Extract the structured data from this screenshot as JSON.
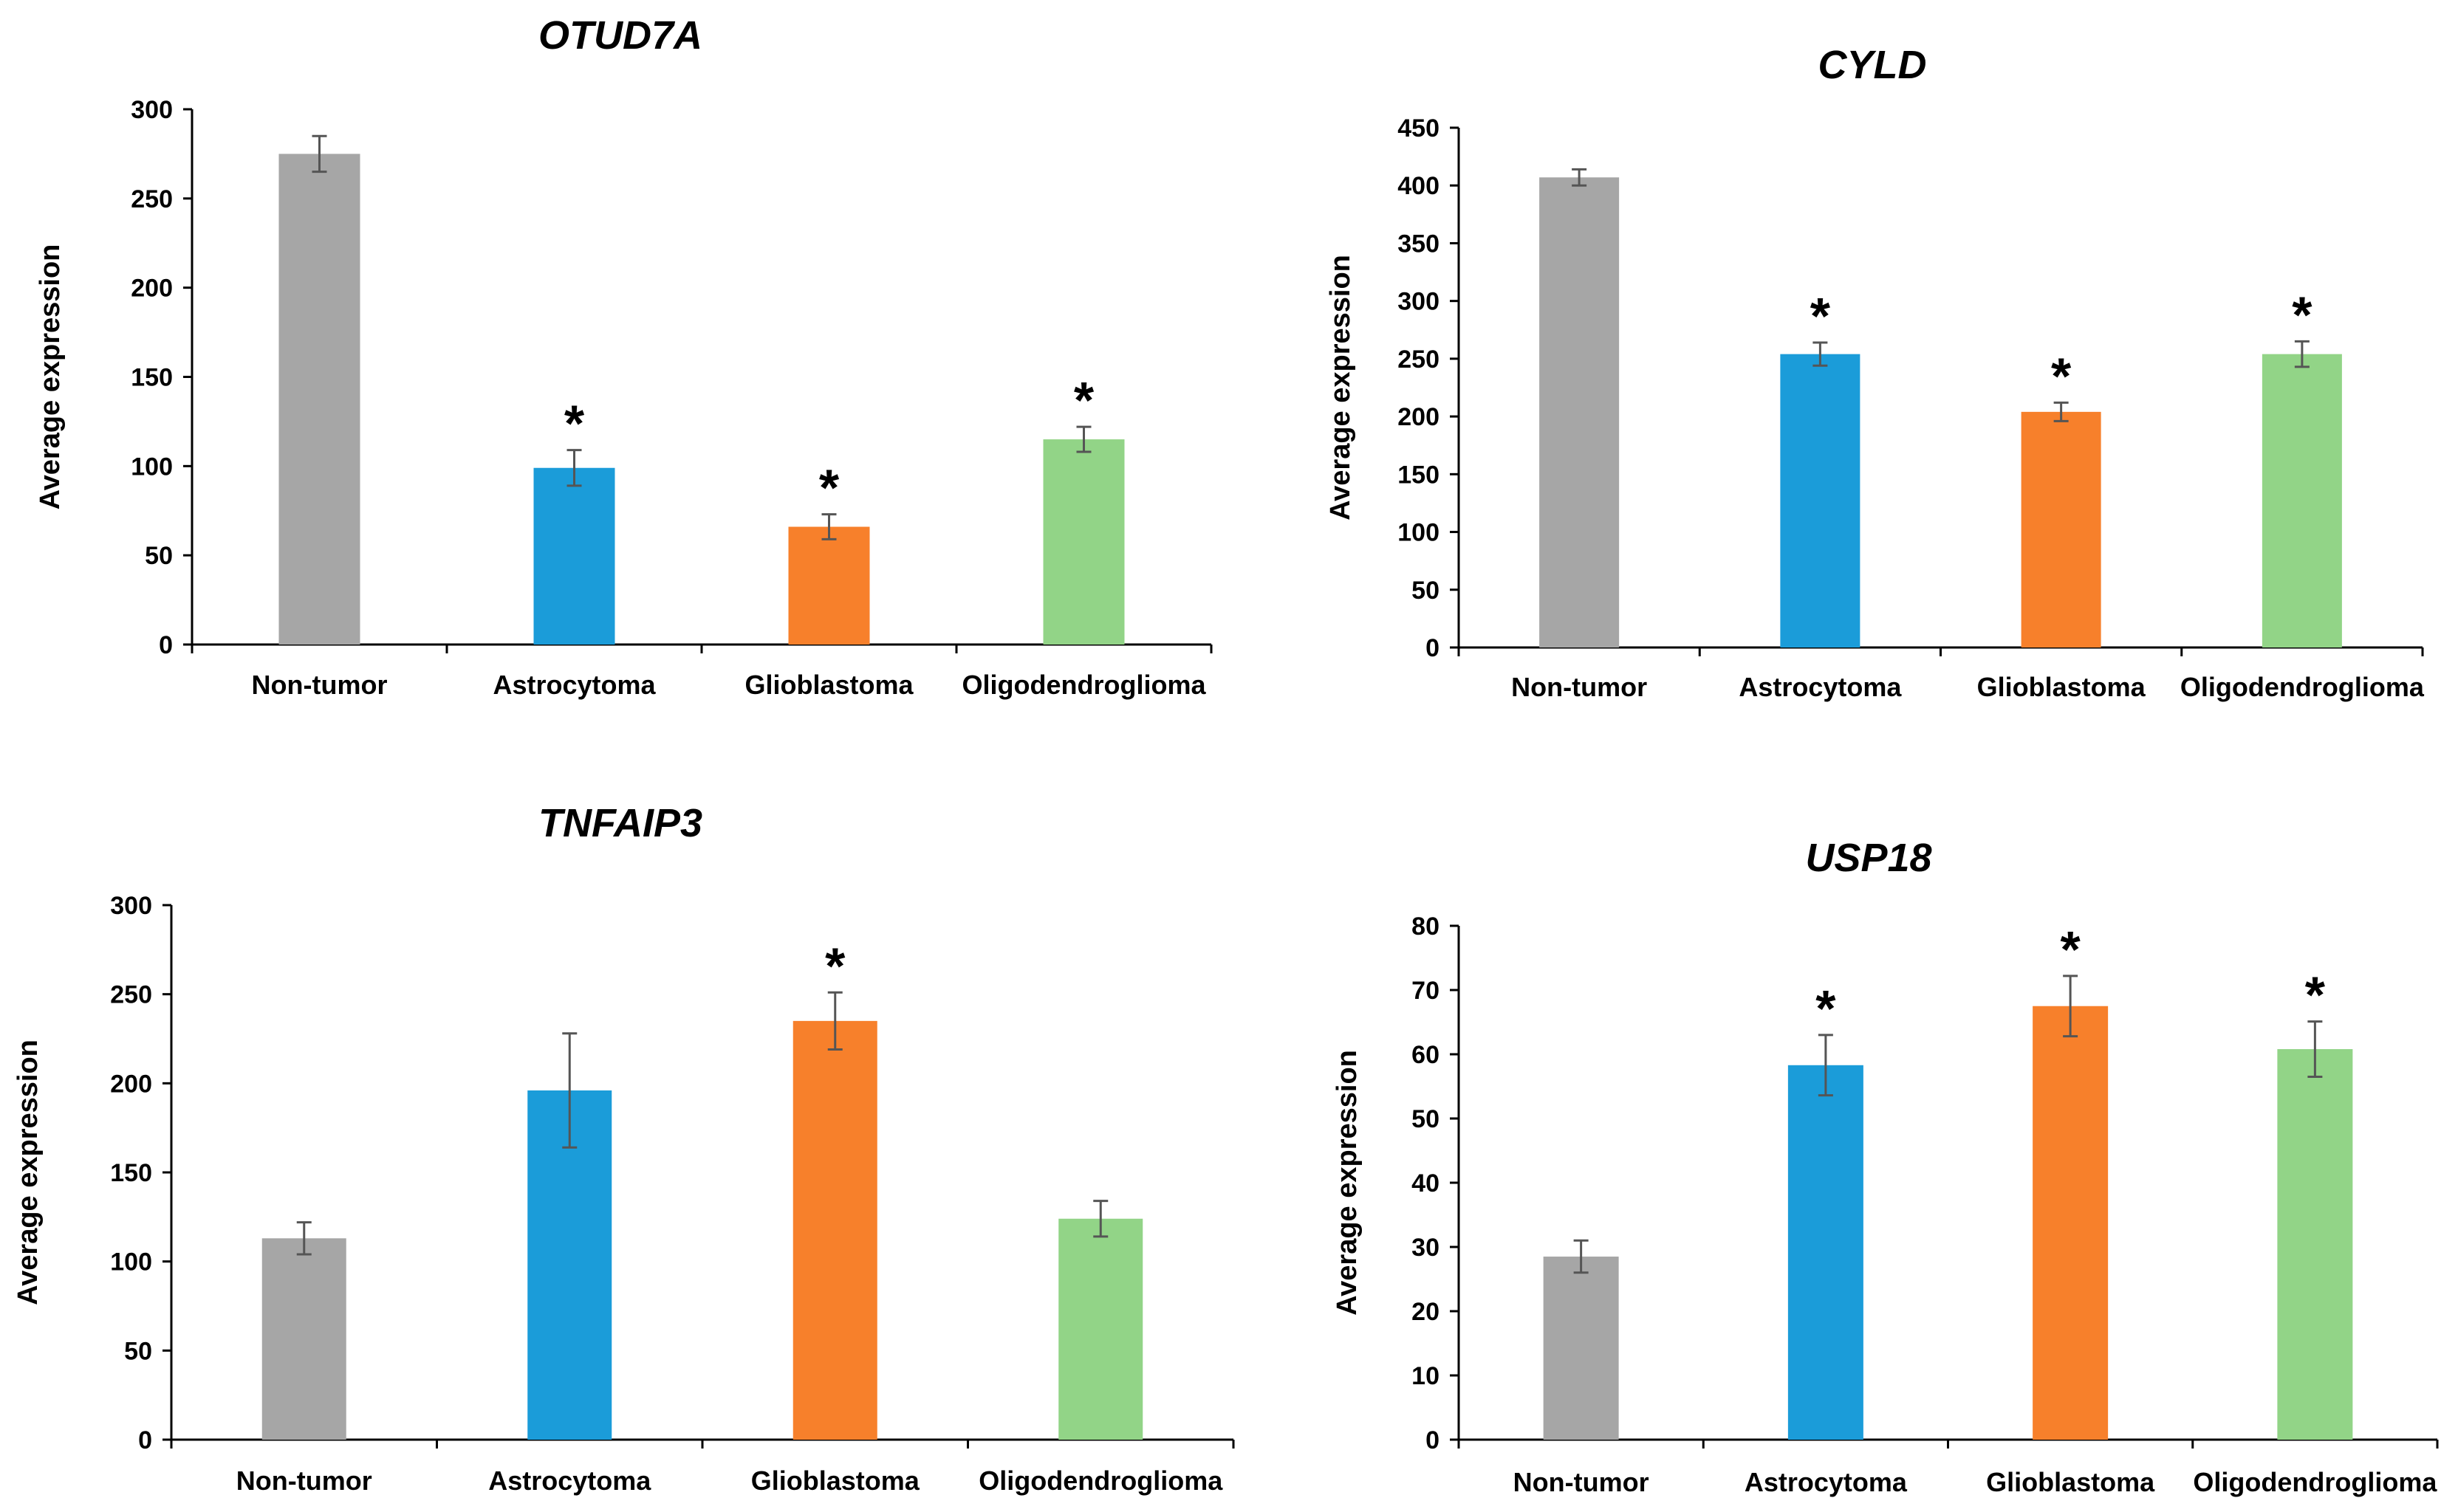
{
  "colors": {
    "Non-tumor": "#a6a6a6",
    "Astrocytoma": "#1b9cd9",
    "Glioblastoma": "#f7802b",
    "Oligodendroglioma": "#92d487"
  },
  "chart_data": [
    {
      "type": "bar",
      "title": "OTUD7A",
      "ylabel": "Average expression",
      "xlabel": "",
      "categories": [
        "Non-tumor",
        "Astrocytoma",
        "Glioblastoma",
        "Oligodendroglioma"
      ],
      "values": [
        275,
        99,
        66,
        115
      ],
      "errors": [
        10,
        10,
        7,
        7
      ],
      "significant": [
        false,
        true,
        true,
        true
      ],
      "significance_marker": "*",
      "ylim": [
        0,
        300
      ],
      "yticks": [
        0,
        50,
        100,
        150,
        200,
        250,
        300
      ]
    },
    {
      "type": "bar",
      "title": "CYLD",
      "ylabel": "Average expression",
      "xlabel": "",
      "categories": [
        "Non-tumor",
        "Astrocytoma",
        "Glioblastoma",
        "Oligodendroglioma"
      ],
      "values": [
        407,
        254,
        204,
        254
      ],
      "errors": [
        7,
        10,
        8,
        11
      ],
      "significant": [
        false,
        true,
        true,
        true
      ],
      "significance_marker": "*",
      "ylim": [
        0,
        450
      ],
      "yticks": [
        0,
        50,
        100,
        150,
        200,
        250,
        300,
        350,
        400,
        450
      ]
    },
    {
      "type": "bar",
      "title": "TNFAIP3",
      "ylabel": "Average expression",
      "xlabel": "",
      "categories": [
        "Non-tumor",
        "Astrocytoma",
        "Glioblastoma",
        "Oligodendroglioma"
      ],
      "values": [
        113,
        196,
        235,
        124
      ],
      "errors": [
        9,
        32,
        16,
        10
      ],
      "significant": [
        false,
        false,
        true,
        false
      ],
      "significance_marker": "*",
      "ylim": [
        0,
        300
      ],
      "yticks": [
        0,
        50,
        100,
        150,
        200,
        250,
        300
      ]
    },
    {
      "type": "bar",
      "title": "USP18",
      "ylabel": "Average expression",
      "xlabel": "",
      "categories": [
        "Non-tumor",
        "Astrocytoma",
        "Glioblastoma",
        "Oligodendroglioma"
      ],
      "values": [
        28.5,
        58.3,
        67.5,
        60.8
      ],
      "errors": [
        2.5,
        4.7,
        4.7,
        4.3
      ],
      "significant": [
        false,
        true,
        true,
        true
      ],
      "significance_marker": "*",
      "ylim": [
        0,
        80
      ],
      "yticks": [
        0,
        10,
        20,
        30,
        40,
        50,
        60,
        70,
        80
      ]
    }
  ]
}
